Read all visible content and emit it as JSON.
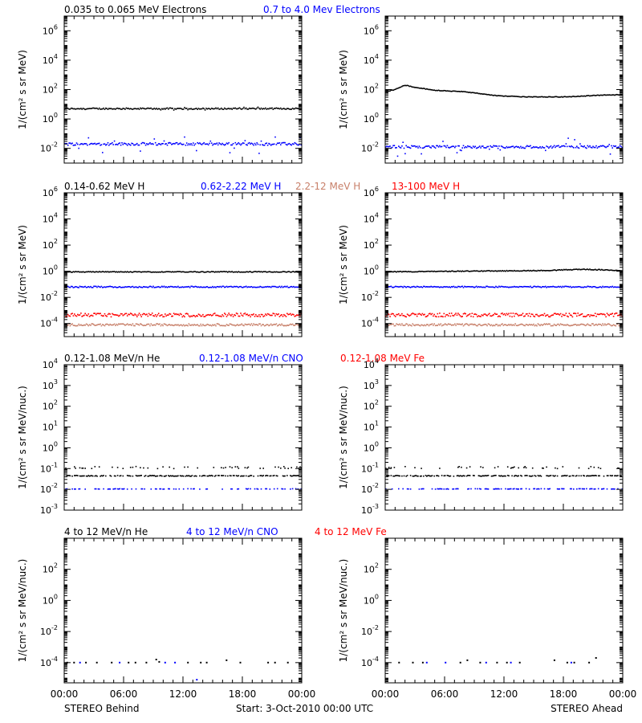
{
  "colors": {
    "black": "#000000",
    "blue": "#0000ff",
    "tan": "#c8806a",
    "red": "#ff0000"
  },
  "footer": {
    "left": "STEREO Behind",
    "center": "Start:  3-Oct-2010 00:00 UTC",
    "right": "STEREO Ahead"
  },
  "rows": [
    {
      "legend": [
        {
          "text": "0.035 to 0.065 MeV Electrons",
          "color": "#000000"
        },
        {
          "text": "0.7 to 4.0 Mev Electrons",
          "color": "#0000ff"
        }
      ]
    },
    {
      "legend": [
        {
          "text": "0.14-0.62 MeV H",
          "color": "#000000"
        },
        {
          "text": "0.62-2.22 MeV H",
          "color": "#0000ff"
        },
        {
          "text": "2.2-12 MeV H",
          "color": "#c8806a"
        },
        {
          "text": "13-100 MeV H",
          "color": "#ff0000"
        }
      ]
    },
    {
      "legend": [
        {
          "text": "0.12-1.08 MeV/n He",
          "color": "#000000"
        },
        {
          "text": "0.12-1.08 MeV/n CNO",
          "color": "#0000ff"
        },
        {
          "text": "0.12-1.08 MeV Fe",
          "color": "#ff0000"
        }
      ]
    },
    {
      "legend": [
        {
          "text": "4 to 12 MeV/n He",
          "color": "#000000"
        },
        {
          "text": "4 to 12 MeV/n CNO",
          "color": "#0000ff"
        },
        {
          "text": "4 to 12 MeV Fe",
          "color": "#ff0000"
        }
      ]
    }
  ],
  "chart_data": [
    {
      "type": "scatter",
      "id": "r0-behind",
      "row": 0,
      "col": 0,
      "yscale": "log",
      "xlim": [
        0,
        24
      ],
      "ylim_exp": [
        -3,
        7
      ],
      "xticks": [
        "00:00",
        "06:00",
        "12:00",
        "18:00",
        "00:00"
      ],
      "yticks": [
        -2,
        0,
        2,
        4,
        6
      ],
      "ylabel": "1/(cm² s sr MeV)",
      "series": [
        {
          "color": "#000000",
          "profile": [
            [
              0,
              0.7
            ],
            [
              24,
              0.7
            ]
          ],
          "jitter": 0.05,
          "spike": 0.05,
          "mode": "dense"
        },
        {
          "color": "#0000ff",
          "profile": [
            [
              0,
              -1.7
            ],
            [
              24,
              -1.7
            ]
          ],
          "jitter": 0.09,
          "spike": 0.3,
          "mode": "dense"
        }
      ]
    },
    {
      "type": "scatter",
      "id": "r0-ahead",
      "row": 0,
      "col": 1,
      "yscale": "log",
      "xlim": [
        0,
        24
      ],
      "ylim_exp": [
        -3,
        7
      ],
      "xticks": [
        "00:00",
        "06:00",
        "12:00",
        "18:00",
        "00:00"
      ],
      "yticks": [
        -2,
        0,
        2,
        4,
        6
      ],
      "ylabel": "1/(cm² s sr MeV)",
      "series": [
        {
          "color": "#000000",
          "profile": [
            [
              0,
              1.85
            ],
            [
              1,
              2.0
            ],
            [
              2,
              2.3
            ],
            [
              3,
              2.15
            ],
            [
              5,
              1.95
            ],
            [
              8,
              1.85
            ],
            [
              11,
              1.6
            ],
            [
              14,
              1.5
            ],
            [
              18,
              1.5
            ],
            [
              22,
              1.62
            ],
            [
              24,
              1.65
            ]
          ],
          "jitter": 0.02,
          "spike": 0,
          "mode": "dense"
        },
        {
          "color": "#0000ff",
          "profile": [
            [
              0,
              -1.9
            ],
            [
              24,
              -1.9
            ]
          ],
          "jitter": 0.09,
          "spike": 0.3,
          "mode": "dense"
        }
      ]
    },
    {
      "type": "scatter",
      "id": "r1-behind",
      "row": 1,
      "col": 0,
      "yscale": "log",
      "xlim": [
        0,
        24
      ],
      "ylim_exp": [
        -5,
        6
      ],
      "xticks": [
        "00:00",
        "06:00",
        "12:00",
        "18:00",
        "00:00"
      ],
      "yticks": [
        -4,
        -2,
        0,
        2,
        4,
        6
      ],
      "ylabel": "1/(cm² s sr MeV)",
      "series": [
        {
          "color": "#000000",
          "profile": [
            [
              0,
              -0.05
            ],
            [
              24,
              -0.05
            ]
          ],
          "jitter": 0.03,
          "spike": 0,
          "mode": "dense"
        },
        {
          "color": "#0000ff",
          "profile": [
            [
              0,
              -1.2
            ],
            [
              24,
              -1.2
            ]
          ],
          "jitter": 0.05,
          "spike": 0,
          "mode": "dense"
        },
        {
          "color": "#ff0000",
          "profile": [
            [
              0,
              -3.35
            ],
            [
              24,
              -3.35
            ]
          ],
          "jitter": 0.14,
          "spike": 0,
          "mode": "dense"
        },
        {
          "color": "#c8806a",
          "profile": [
            [
              0,
              -4.1
            ],
            [
              24,
              -4.1
            ]
          ],
          "jitter": 0.08,
          "spike": 0,
          "mode": "dense"
        }
      ]
    },
    {
      "type": "scatter",
      "id": "r1-ahead",
      "row": 1,
      "col": 1,
      "yscale": "log",
      "xlim": [
        0,
        24
      ],
      "ylim_exp": [
        -5,
        6
      ],
      "xticks": [
        "00:00",
        "06:00",
        "12:00",
        "18:00",
        "00:00"
      ],
      "yticks": [
        -4,
        -2,
        0,
        2,
        4,
        6
      ],
      "ylabel": "1/(cm² s sr MeV)",
      "series": [
        {
          "color": "#000000",
          "profile": [
            [
              0,
              -0.05
            ],
            [
              16,
              0.05
            ],
            [
              20,
              0.15
            ],
            [
              24,
              0.05
            ]
          ],
          "jitter": 0.03,
          "spike": 0,
          "mode": "dense"
        },
        {
          "color": "#0000ff",
          "profile": [
            [
              0,
              -1.2
            ],
            [
              24,
              -1.2
            ]
          ],
          "jitter": 0.05,
          "spike": 0,
          "mode": "dense"
        },
        {
          "color": "#ff0000",
          "profile": [
            [
              0,
              -3.35
            ],
            [
              24,
              -3.35
            ]
          ],
          "jitter": 0.14,
          "spike": 0,
          "mode": "dense"
        },
        {
          "color": "#c8806a",
          "profile": [
            [
              0,
              -4.1
            ],
            [
              24,
              -4.1
            ]
          ],
          "jitter": 0.08,
          "spike": 0,
          "mode": "dense"
        }
      ]
    },
    {
      "type": "scatter",
      "id": "r2-behind",
      "row": 2,
      "col": 0,
      "yscale": "log",
      "xlim": [
        0,
        24
      ],
      "ylim_exp": [
        -3,
        4
      ],
      "xticks": [
        "00:00",
        "06:00",
        "12:00",
        "18:00",
        "00:00"
      ],
      "yticks": [
        -3,
        -2,
        -1,
        0,
        1,
        2,
        3,
        4
      ],
      "ylabel": "1/(cm² s sr MeV/nuc.)",
      "series": [
        {
          "color": "#000000",
          "profile": [
            [
              0,
              -1.35
            ],
            [
              24,
              -1.35
            ]
          ],
          "jitter": 0.02,
          "spike": 0,
          "mode": "dense",
          "density": 0.7
        },
        {
          "color": "#000000",
          "profile": [
            [
              0,
              -0.95
            ],
            [
              24,
              -0.95
            ]
          ],
          "jitter": 0.05,
          "spike": 0,
          "mode": "sparse",
          "density": 0.25
        },
        {
          "color": "#0000ff",
          "profile": [
            [
              0,
              -1.98
            ],
            [
              24,
              -1.98
            ]
          ],
          "jitter": 0.01,
          "spike": 0,
          "mode": "sparse",
          "density": 0.35
        }
      ]
    },
    {
      "type": "scatter",
      "id": "r2-ahead",
      "row": 2,
      "col": 1,
      "yscale": "log",
      "xlim": [
        0,
        24
      ],
      "ylim_exp": [
        -3,
        4
      ],
      "xticks": [
        "00:00",
        "06:00",
        "12:00",
        "18:00",
        "00:00"
      ],
      "yticks": [
        -3,
        -2,
        -1,
        0,
        1,
        2,
        3,
        4
      ],
      "ylabel": "1/(cm² s sr MeV/nuc.)",
      "series": [
        {
          "color": "#000000",
          "profile": [
            [
              0,
              -1.35
            ],
            [
              24,
              -1.35
            ]
          ],
          "jitter": 0.02,
          "spike": 0,
          "mode": "dense",
          "density": 0.7
        },
        {
          "color": "#000000",
          "profile": [
            [
              0,
              -0.95
            ],
            [
              24,
              -0.95
            ]
          ],
          "jitter": 0.05,
          "spike": 0,
          "mode": "sparse",
          "density": 0.15
        },
        {
          "color": "#0000ff",
          "profile": [
            [
              0,
              -1.98
            ],
            [
              24,
              -1.98
            ]
          ],
          "jitter": 0.01,
          "spike": 0,
          "mode": "sparse",
          "density": 0.45
        }
      ]
    },
    {
      "type": "scatter",
      "id": "r3-behind",
      "row": 3,
      "col": 0,
      "yscale": "log",
      "xlim": [
        0,
        24
      ],
      "ylim_exp": [
        -5.3,
        4
      ],
      "xticks": [
        "00:00",
        "06:00",
        "12:00",
        "18:00",
        "00:00"
      ],
      "yticks": [
        -4,
        -2,
        0,
        2
      ],
      "ylabel": "1/(cm² s sr MeV/nuc.)",
      "series": [
        {
          "color": "#000000",
          "points": [
            [
              0.3,
              -4
            ],
            [
              1,
              -4
            ],
            [
              2.2,
              -4
            ],
            [
              3.3,
              -4
            ],
            [
              4.8,
              -4
            ],
            [
              6.5,
              -4
            ],
            [
              7.2,
              -4
            ],
            [
              8.3,
              -4
            ],
            [
              9.3,
              -3.8
            ],
            [
              9.6,
              -3.95
            ],
            [
              12.5,
              -4
            ],
            [
              13.8,
              -4
            ],
            [
              14.4,
              -4
            ],
            [
              16.4,
              -3.85
            ],
            [
              17.8,
              -4
            ],
            [
              20.6,
              -4
            ],
            [
              21.3,
              -4
            ],
            [
              22.6,
              -4
            ]
          ]
        },
        {
          "color": "#0000ff",
          "points": [
            [
              1.6,
              -4
            ],
            [
              5.6,
              -4
            ],
            [
              10.2,
              -4
            ],
            [
              11.2,
              -4
            ],
            [
              13.4,
              -5.1
            ]
          ]
        }
      ]
    },
    {
      "type": "scatter",
      "id": "r3-ahead",
      "row": 3,
      "col": 1,
      "yscale": "log",
      "xlim": [
        0,
        24
      ],
      "ylim_exp": [
        -5.3,
        4
      ],
      "xticks": [
        "00:00",
        "06:00",
        "12:00",
        "18:00",
        "00:00"
      ],
      "yticks": [
        -4,
        -2,
        0,
        2
      ],
      "ylabel": "1/(cm² s sr MeV/nuc.)",
      "series": [
        {
          "color": "#000000",
          "points": [
            [
              1.4,
              -4
            ],
            [
              2.8,
              -4
            ],
            [
              3.8,
              -4
            ],
            [
              7.6,
              -4
            ],
            [
              8.3,
              -3.85
            ],
            [
              9.6,
              -4
            ],
            [
              11.3,
              -4
            ],
            [
              12.3,
              -4
            ],
            [
              13.6,
              -4
            ],
            [
              17.1,
              -3.85
            ],
            [
              18.4,
              -4
            ],
            [
              19.1,
              -4
            ],
            [
              20.6,
              -4
            ],
            [
              21.3,
              -3.7
            ]
          ]
        },
        {
          "color": "#0000ff",
          "points": [
            [
              4.2,
              -4
            ],
            [
              6.1,
              -4
            ],
            [
              10.2,
              -4
            ],
            [
              12.7,
              -4
            ],
            [
              18.8,
              -4
            ]
          ]
        }
      ]
    }
  ]
}
